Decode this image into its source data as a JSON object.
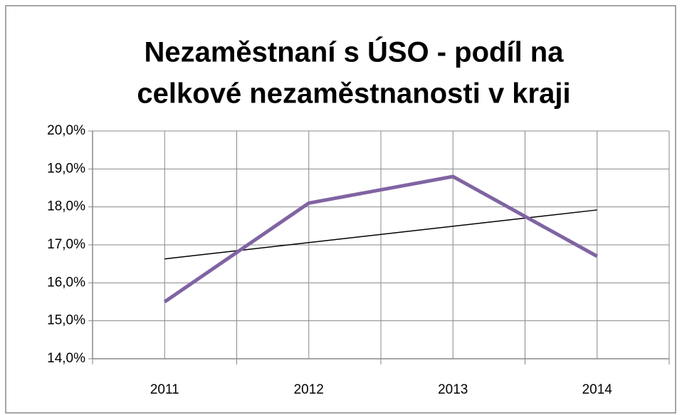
{
  "chart_data": {
    "type": "line",
    "title": [
      "Nezaměstnaní s ÚSO - podíl na",
      "celkové nezaměstnanosti v kraji"
    ],
    "categories": [
      "2011",
      "2012",
      "2013",
      "2014"
    ],
    "series": [
      {
        "color": "#8064a2",
        "values": [
          15.5,
          18.1,
          18.8,
          16.7
        ]
      }
    ],
    "trendline": {
      "type": "linear",
      "color": "#000000"
    },
    "ylim": [
      14,
      20
    ],
    "yticks": [
      {
        "value": 14,
        "label": "14,0%"
      },
      {
        "value": 15,
        "label": "15,0%"
      },
      {
        "value": 16,
        "label": "16,0%"
      },
      {
        "value": 17,
        "label": "17,0%"
      },
      {
        "value": 18,
        "label": "18,0%"
      },
      {
        "value": 19,
        "label": "19,0%"
      },
      {
        "value": 20,
        "label": "20,0%"
      }
    ],
    "grid": true
  }
}
